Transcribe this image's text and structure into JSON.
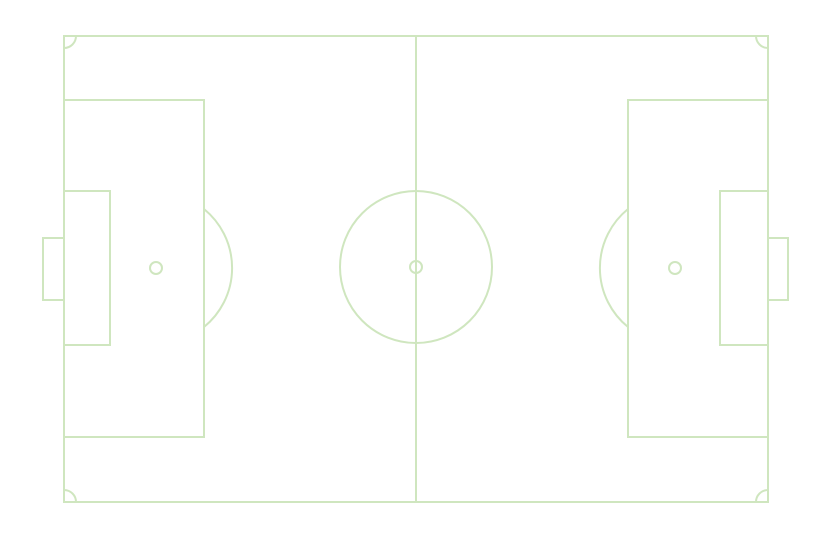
{
  "pitch": {
    "background_color": "#ffffff",
    "line_color": "#cfe6bf",
    "spot_color": "#cfe6bf"
  }
}
